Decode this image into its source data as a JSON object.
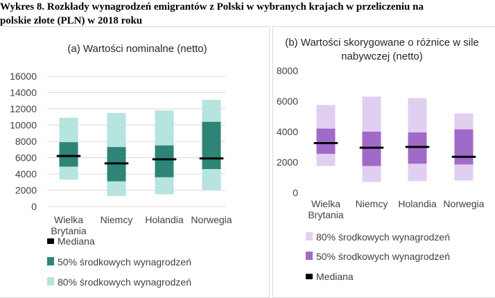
{
  "figure_title": "Wykres 8.  Rozkłady wynagrodzeń emigrantów z Polski w wybranych krajach w przeliczeniu na\npolskie złote (PLN) w 2018 roku",
  "colors": {
    "a_iqr": "#2e8476",
    "a_p80": "#b6e4de",
    "b_iqr": "#a06ac9",
    "b_p80": "#e1cff1",
    "median": "#000000",
    "grid": "#d9d9d9",
    "text": "#404040"
  },
  "chart_data": [
    {
      "type": "box",
      "panel": "a",
      "title": "(a)  Wartości nominalne (netto)",
      "categories": [
        "Wielka\nBrytania",
        "Niemcy",
        "Holandia",
        "Norwegia"
      ],
      "yticks": [
        0,
        2000,
        4000,
        6000,
        8000,
        10000,
        12000,
        14000,
        16000
      ],
      "ylim": [
        0,
        16000
      ],
      "grid": true,
      "legend_position": "bottom",
      "legend": [
        {
          "key": "median",
          "label": "Mediana"
        },
        {
          "key": "iqr",
          "label": "50% środkowych wynagrodzeń"
        },
        {
          "key": "p80",
          "label": "80% środkowych wynagrodzeń"
        }
      ],
      "series": {
        "p80_low": [
          3300,
          1300,
          1500,
          2000
        ],
        "iqr_low": [
          4900,
          3100,
          3600,
          4600
        ],
        "median": [
          6200,
          5300,
          5800,
          5900
        ],
        "iqr_high": [
          7900,
          7300,
          7500,
          10400
        ],
        "p80_high": [
          10900,
          11500,
          11800,
          13100
        ]
      }
    },
    {
      "type": "box",
      "panel": "b",
      "title": "(b)  Wartości skorygowane o różnice w sile\nnabywczej (netto)",
      "categories": [
        "Wielka\nBrytania",
        "Niemcy",
        "Holandia",
        "Norwegia"
      ],
      "yticks": [
        0,
        2000,
        4000,
        6000,
        8000
      ],
      "ylim": [
        0,
        8000
      ],
      "grid": false,
      "legend_position": "bottom",
      "legend": [
        {
          "key": "p80",
          "label": "80% środkowych wynagrodzeń"
        },
        {
          "key": "iqr",
          "label": "50% środkowych wynagrodzeń"
        },
        {
          "key": "median",
          "label": "Mediana"
        }
      ],
      "series": {
        "p80_low": [
          1750,
          700,
          750,
          800
        ],
        "iqr_low": [
          2550,
          1750,
          1900,
          1850
        ],
        "median": [
          3250,
          2950,
          3000,
          2350
        ],
        "iqr_high": [
          4200,
          4000,
          3950,
          4150
        ],
        "p80_high": [
          5750,
          6300,
          6200,
          5200
        ]
      }
    }
  ]
}
